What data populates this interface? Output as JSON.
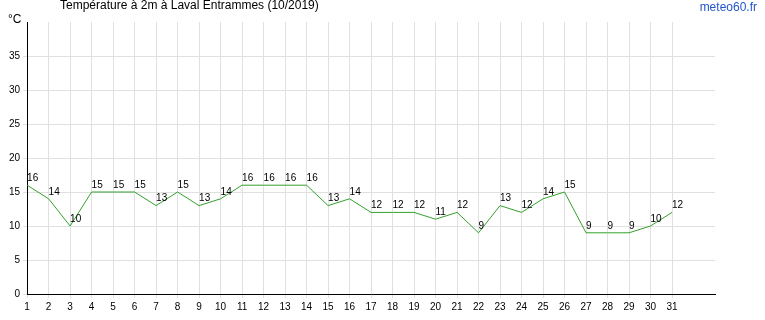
{
  "chart_data": {
    "type": "line",
    "title": "Température à 2m à Laval Entrammes (10/2019)",
    "subtitle": "meteo60.fr",
    "ylabel": "°C",
    "x": [
      1,
      2,
      3,
      4,
      5,
      6,
      7,
      8,
      9,
      10,
      11,
      12,
      13,
      14,
      15,
      16,
      17,
      18,
      19,
      20,
      21,
      22,
      23,
      24,
      25,
      26,
      27,
      28,
      29,
      30,
      31
    ],
    "values": [
      16,
      14,
      10,
      15,
      15,
      15,
      13,
      15,
      13,
      14,
      16,
      16,
      16,
      16,
      13,
      14,
      12,
      12,
      12,
      11,
      12,
      9,
      13,
      12,
      14,
      15,
      9,
      9,
      9,
      10,
      12
    ],
    "color": "#33a02c",
    "xlim": [
      1,
      33
    ],
    "xticks": [
      1,
      2,
      3,
      4,
      5,
      6,
      7,
      8,
      9,
      10,
      11,
      12,
      13,
      14,
      15,
      16,
      17,
      18,
      19,
      20,
      21,
      22,
      23,
      24,
      25,
      26,
      27,
      28,
      29,
      30,
      31
    ],
    "ylim": [
      0,
      40
    ],
    "yticks": [
      0,
      5,
      10,
      15,
      20,
      25,
      30,
      35
    ],
    "grid": true,
    "data_labels": true
  }
}
